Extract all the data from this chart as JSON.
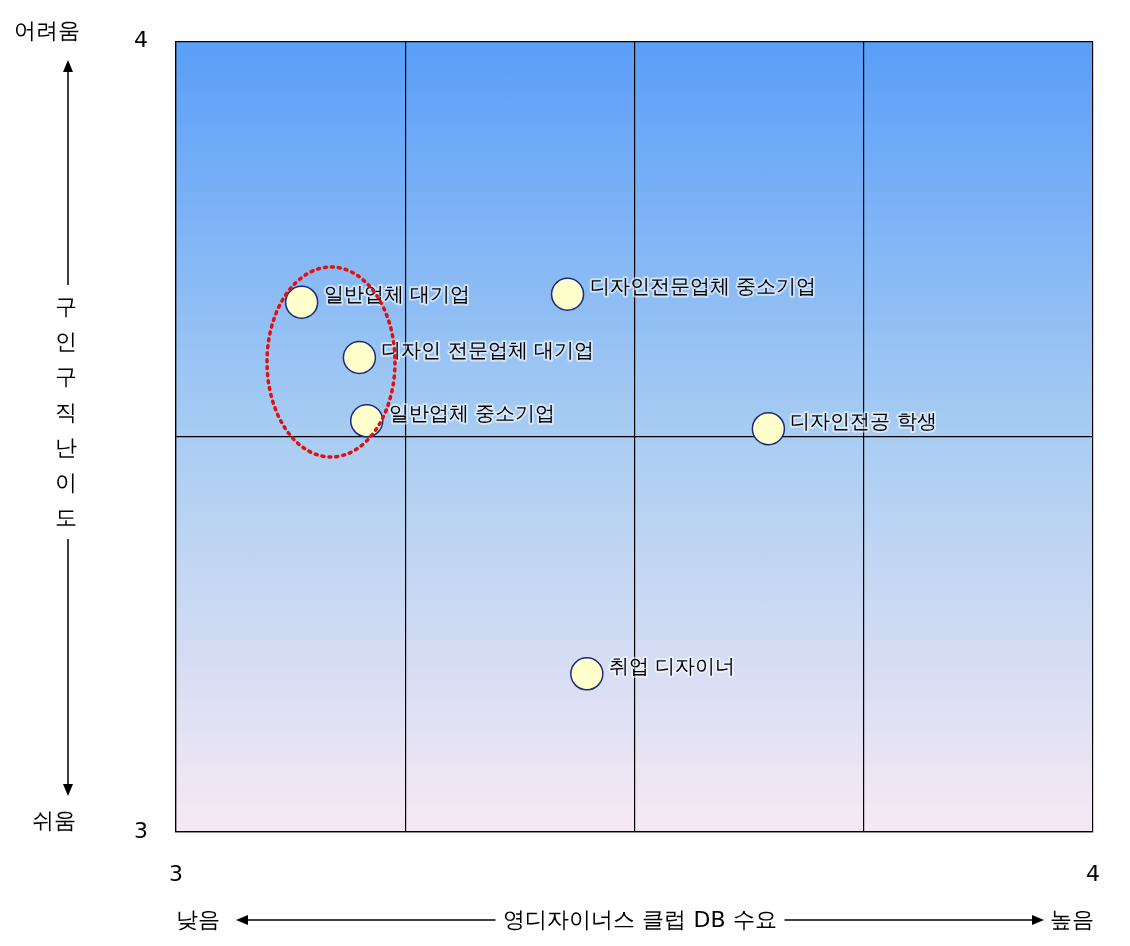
{
  "chart_data": {
    "type": "scatter",
    "xlabel": "영디자이너스 클럽 DB 수요",
    "ylabel": "구인 구직 난이도",
    "x": [
      3.137,
      3.2,
      3.208,
      3.427,
      3.646,
      3.448
    ],
    "series": [
      {
        "color": "#ffffcc",
        "values": [
          3.67,
          3.6,
          3.52,
          3.68,
          3.51,
          3.2
        ]
      }
    ],
    "xlim": [
      3,
      4
    ],
    "ylim": [
      3,
      4
    ],
    "xticks": [
      3,
      {
        "value": 3.25,
        "label": null
      },
      {
        "value": 3.5,
        "label": null
      },
      {
        "value": 3.75,
        "label": null
      },
      4
    ],
    "yticks": [
      3,
      {
        "value": 3.5,
        "label": null
      },
      4
    ],
    "grid": true,
    "legend": false,
    "marker": "circle",
    "annotations": [
      "어려움",
      "쉬움",
      "낮음",
      "높음",
      {
        "text": "일반업체 대기업",
        "x": 3.137,
        "y": 3.67
      },
      {
        "text": "디자인 전문업체 대기업",
        "x": 3.2,
        "y": 3.6
      },
      {
        "text": "일반업체 중소기업",
        "x": 3.208,
        "y": 3.52
      },
      {
        "text": "디자인전문업체 중소기업",
        "x": 3.427,
        "y": 3.68
      },
      {
        "text": "디자인전공 학생",
        "x": 3.646,
        "y": 3.51
      },
      {
        "text": "취업 디자이너",
        "x": 3.448,
        "y": 3.2
      }
    ]
  }
}
